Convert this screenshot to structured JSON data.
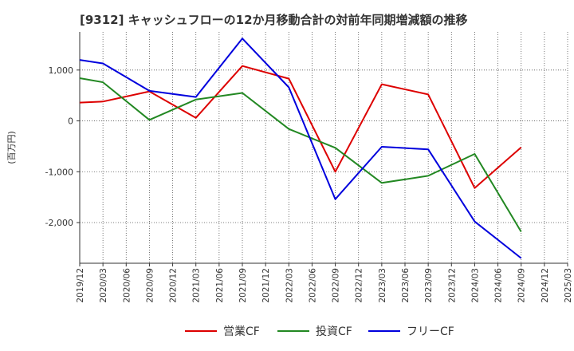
{
  "title": "[9312]  キャッシュフローの12か月移動合計の対前年同期増減額の推移",
  "chart_data": {
    "type": "line",
    "ylabel": "(百万円)",
    "xlabel": "",
    "categories": [
      "2019/12",
      "2020/03",
      "2020/06",
      "2020/09",
      "2020/12",
      "2021/03",
      "2021/06",
      "2021/09",
      "2021/12",
      "2022/03",
      "2022/06",
      "2022/09",
      "2022/12",
      "2023/03",
      "2023/06",
      "2023/09",
      "2023/12",
      "2024/03",
      "2024/06",
      "2024/09",
      "2024/12",
      "2025/03"
    ],
    "ylim": [
      -2800,
      1750
    ],
    "yticks": [
      1000,
      0,
      -1000,
      -2000
    ],
    "ytick_labels": [
      "1,000",
      "0",
      "-1,000",
      "-2,000"
    ],
    "grid": true,
    "legend_position": "bottom",
    "series": [
      {
        "name": "営業CF",
        "color": "#dd0000",
        "values": [
          360,
          380,
          null,
          580,
          null,
          60,
          null,
          1080,
          null,
          830,
          null,
          -1000,
          null,
          720,
          null,
          520,
          null,
          -1320,
          null,
          -520,
          null,
          null
        ]
      },
      {
        "name": "投資CF",
        "color": "#228822",
        "values": [
          840,
          760,
          null,
          20,
          null,
          420,
          null,
          550,
          null,
          -160,
          null,
          -530,
          null,
          -1220,
          null,
          -1080,
          null,
          -650,
          null,
          -2180,
          null,
          null
        ]
      },
      {
        "name": "フリーCF",
        "color": "#0000dd",
        "values": [
          1200,
          1130,
          null,
          590,
          null,
          470,
          null,
          1620,
          null,
          660,
          null,
          -1540,
          null,
          -510,
          null,
          -560,
          null,
          -1980,
          null,
          -2700,
          null,
          null
        ]
      }
    ]
  }
}
